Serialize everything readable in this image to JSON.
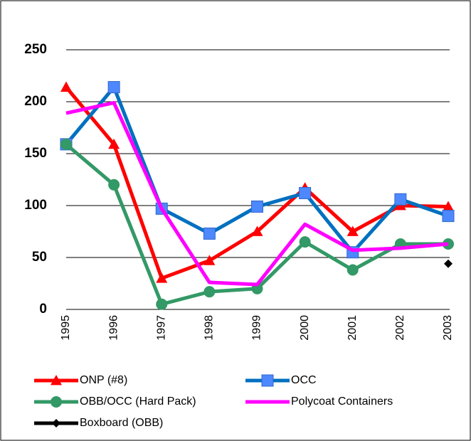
{
  "chart_data": {
    "type": "line",
    "categories": [
      "1995",
      "1996",
      "1997",
      "1998",
      "1999",
      "2000",
      "2001",
      "2002",
      "2003"
    ],
    "series": [
      {
        "name": "ONP (#8)",
        "color": "#ff0000",
        "marker": "triangle",
        "values": [
          214,
          159,
          30,
          47,
          75,
          117,
          75,
          100,
          99
        ]
      },
      {
        "name": "OCC",
        "color": "#0070c0",
        "marker": "square",
        "values": [
          159,
          214,
          97,
          73,
          99,
          112,
          55,
          106,
          90
        ]
      },
      {
        "name": "OBB/OCC (Hard Pack)",
        "color": "#339966",
        "marker": "circle",
        "values": [
          159,
          120,
          5,
          17,
          20,
          65,
          38,
          63,
          63
        ]
      },
      {
        "name": "Polycoat Containers",
        "color": "#ff00ff",
        "marker": "none",
        "values": [
          189,
          199,
          97,
          26,
          24,
          82,
          57,
          59,
          63
        ]
      },
      {
        "name": "Boxboard (OBB)",
        "color": "#000000",
        "marker": "diamond",
        "values": [
          null,
          null,
          null,
          null,
          null,
          null,
          null,
          null,
          44
        ]
      }
    ],
    "ylim": [
      0,
      250
    ],
    "yticks": [
      0,
      50,
      100,
      150,
      200,
      250
    ],
    "grid": true
  }
}
